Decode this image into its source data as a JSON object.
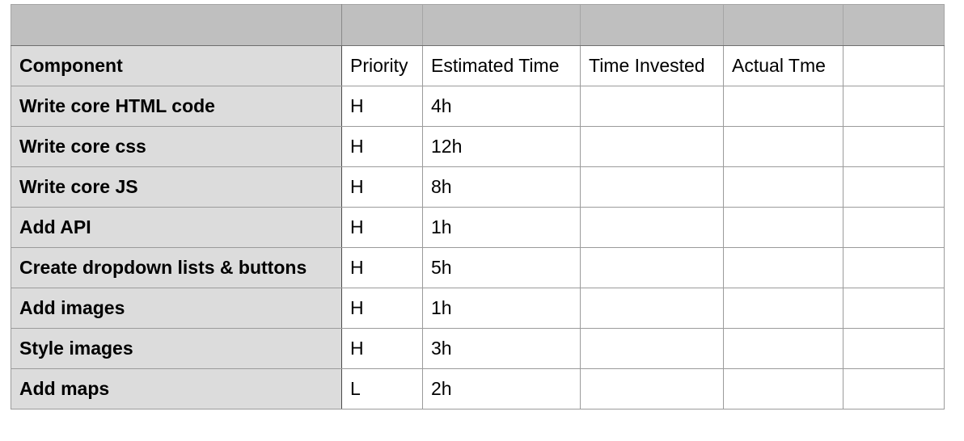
{
  "table": {
    "columns": [
      "Component",
      "Priority",
      "Estimated Time",
      "Time Invested",
      "Actual Tme",
      ""
    ],
    "rows": [
      {
        "component": "Write core HTML code",
        "priority": "H",
        "estimated": "4h",
        "invested": "",
        "actual": "",
        "extra": ""
      },
      {
        "component": "Write core css",
        "priority": "H",
        "estimated": "12h",
        "invested": "",
        "actual": "",
        "extra": ""
      },
      {
        "component": "Write core JS",
        "priority": "H",
        "estimated": "8h",
        "invested": "",
        "actual": "",
        "extra": ""
      },
      {
        "component": "Add API",
        "priority": "H",
        "estimated": "1h",
        "invested": "",
        "actual": "",
        "extra": ""
      },
      {
        "component": "Create dropdown lists & buttons",
        "priority": "H",
        "estimated": "5h",
        "invested": "",
        "actual": "",
        "extra": ""
      },
      {
        "component": "Add images",
        "priority": "H",
        "estimated": "1h",
        "invested": "",
        "actual": "",
        "extra": ""
      },
      {
        "component": "Style images",
        "priority": "H",
        "estimated": "3h",
        "invested": "",
        "actual": "",
        "extra": ""
      },
      {
        "component": "Add maps",
        "priority": "L",
        "estimated": "2h",
        "invested": "",
        "actual": "",
        "extra": ""
      }
    ]
  },
  "colors": {
    "header_band": "#bfbfbf",
    "first_column": "#dcdcdc",
    "grid_line": "#9b9b9b"
  }
}
